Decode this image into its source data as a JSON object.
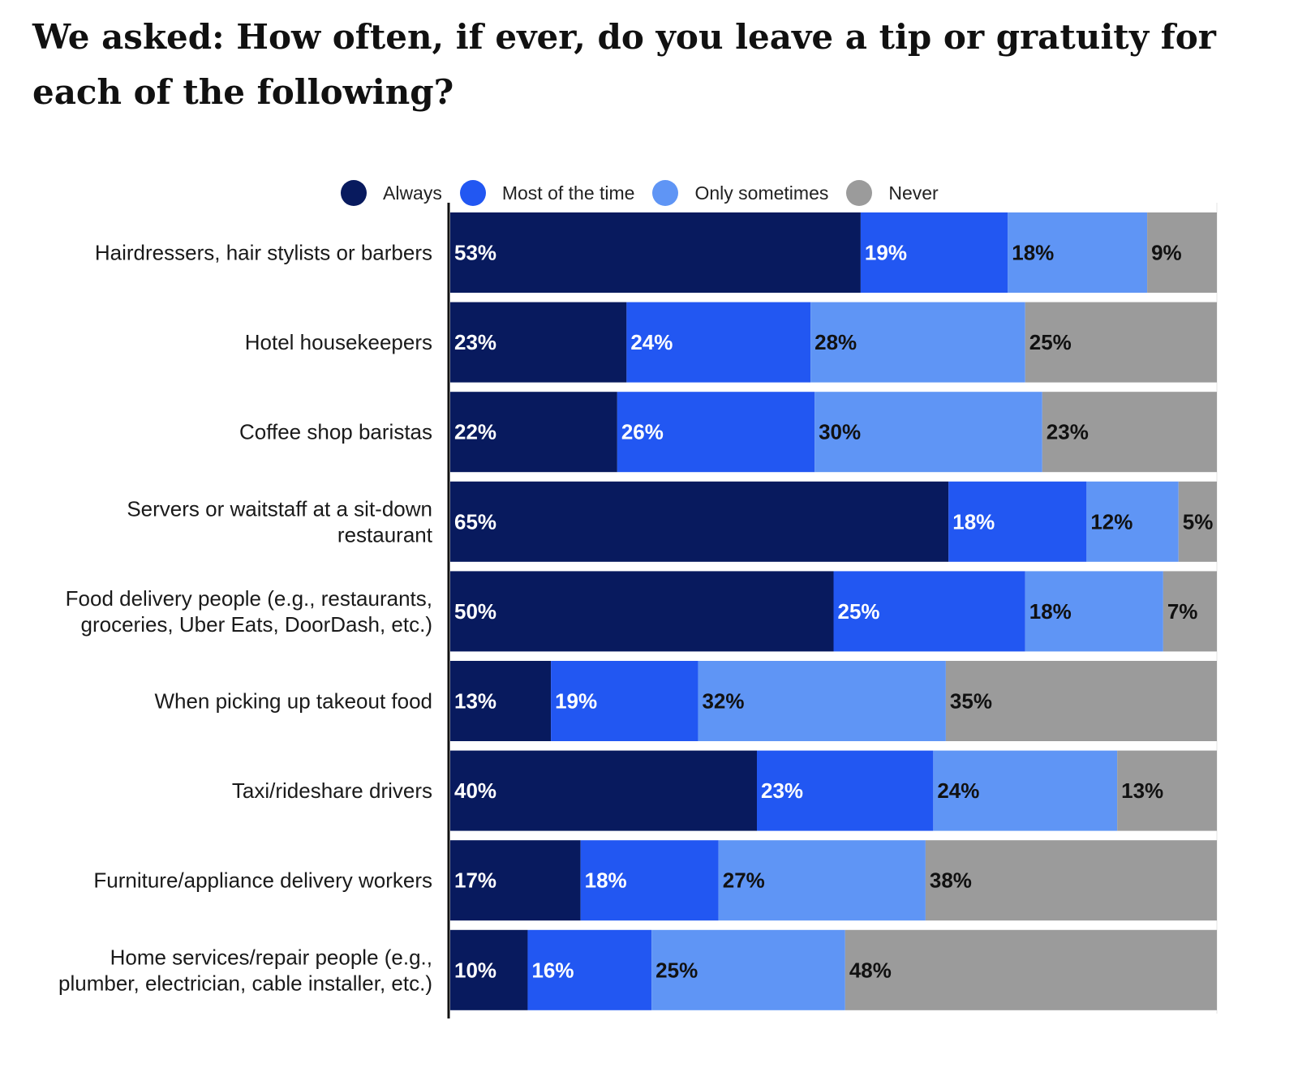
{
  "title": "We asked: How often, if ever, do you leave a tip or gratuity for each of the following?",
  "chart_data": {
    "type": "bar",
    "orientation": "horizontal",
    "stacked": true,
    "title": "We asked: How often, if ever, do you leave a tip or gratuity for each of the following?",
    "xlabel": "",
    "ylabel": "",
    "legend_position": "top",
    "grid": false,
    "categories": [
      [
        "Hairdressers, hair stylists or barbers"
      ],
      [
        "Hotel housekeepers"
      ],
      [
        "Coffee shop baristas"
      ],
      [
        "Servers or waitstaff at a sit-down",
        "restaurant"
      ],
      [
        "Food delivery people (e.g., restaurants,",
        "groceries, Uber Eats, DoorDash, etc.)"
      ],
      [
        "When picking up takeout food"
      ],
      [
        "Taxi/rideshare drivers"
      ],
      [
        "Furniture/appliance delivery workers"
      ],
      [
        "Home services/repair people (e.g.,",
        "plumber, electrician, cable installer, etc.)"
      ]
    ],
    "series": [
      {
        "name": "Always",
        "color": "#081a5e",
        "label_color": "#ffffff",
        "values": [
          53,
          23,
          22,
          65,
          50,
          13,
          40,
          17,
          10
        ]
      },
      {
        "name": "Most of the time",
        "color": "#2257f2",
        "label_color": "#ffffff",
        "values": [
          19,
          24,
          26,
          18,
          25,
          19,
          23,
          18,
          16
        ]
      },
      {
        "name": "Only sometimes",
        "color": "#5f95f5",
        "label_color": "#111111",
        "values": [
          18,
          28,
          30,
          12,
          18,
          32,
          24,
          27,
          25
        ]
      },
      {
        "name": "Never",
        "color": "#9b9b9b",
        "label_color": "#111111",
        "values": [
          9,
          25,
          23,
          5,
          7,
          35,
          13,
          38,
          48
        ]
      }
    ],
    "value_suffix": "%"
  }
}
